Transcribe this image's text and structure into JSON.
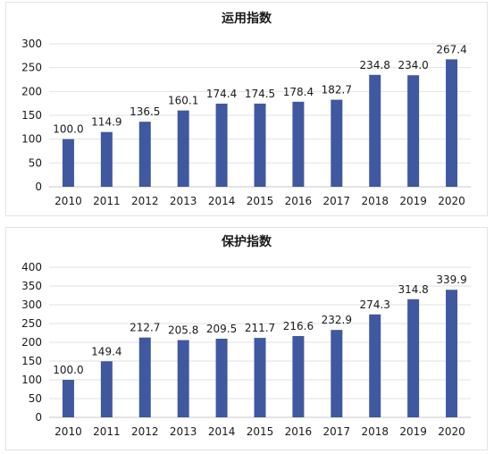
{
  "chart_data": [
    {
      "type": "bar",
      "title": "运用指数",
      "categories": [
        "2010",
        "2011",
        "2012",
        "2013",
        "2014",
        "2015",
        "2016",
        "2017",
        "2018",
        "2019",
        "2020"
      ],
      "values": [
        100.0,
        114.9,
        136.5,
        160.1,
        174.4,
        174.5,
        178.4,
        182.7,
        234.8,
        234.0,
        267.4
      ],
      "value_labels": [
        "100.0",
        "114.9",
        "136.5",
        "160.1",
        "174.4",
        "174.5",
        "178.4",
        "182.7",
        "234.8",
        "234.0",
        "267.4"
      ],
      "ylim": [
        0,
        300
      ],
      "yticks": [
        "0",
        "50",
        "100",
        "150",
        "200",
        "250",
        "300"
      ],
      "grid": true,
      "legend": "none",
      "bar_color": "#3f58a0"
    },
    {
      "type": "bar",
      "title": "保护指数",
      "categories": [
        "2010",
        "2011",
        "2012",
        "2013",
        "2014",
        "2015",
        "2016",
        "2017",
        "2018",
        "2019",
        "2020"
      ],
      "values": [
        100.0,
        149.4,
        212.7,
        205.8,
        209.5,
        211.7,
        216.6,
        232.9,
        274.3,
        314.8,
        339.9
      ],
      "value_labels": [
        "100.0",
        "149.4",
        "212.7",
        "205.8",
        "209.5",
        "211.7",
        "216.6",
        "232.9",
        "274.3",
        "314.8",
        "339.9"
      ],
      "ylim": [
        0,
        400
      ],
      "yticks": [
        "0",
        "50",
        "100",
        "150",
        "200",
        "250",
        "300",
        "350",
        "400"
      ],
      "grid": true,
      "legend": "none",
      "bar_color": "#3f58a0"
    }
  ]
}
